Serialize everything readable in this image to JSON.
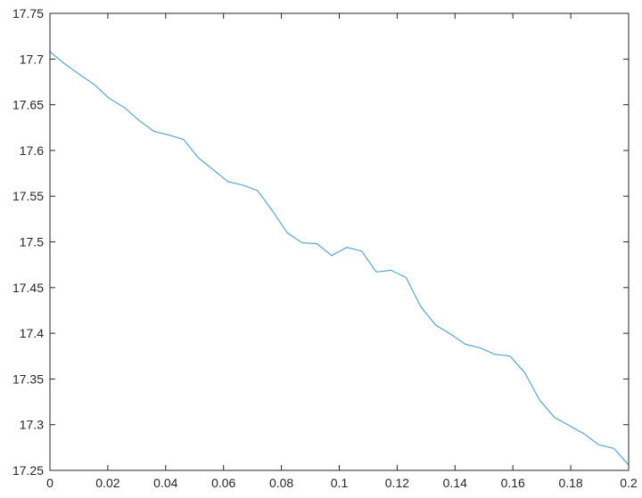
{
  "chart_data": {
    "type": "line",
    "title": "",
    "xlabel": "",
    "ylabel": "",
    "xlim": [
      0,
      0.2
    ],
    "ylim": [
      17.25,
      17.75
    ],
    "grid": false,
    "legend": "none",
    "xticks": [
      "0",
      "0.02",
      "0.04",
      "0.06",
      "0.08",
      "0.1",
      "0.12",
      "0.14",
      "0.16",
      "0.18",
      "0.2"
    ],
    "yticks": [
      "17.25",
      "17.3",
      "17.35",
      "17.4",
      "17.45",
      "17.5",
      "17.55",
      "17.6",
      "17.65",
      "17.7",
      "17.75"
    ],
    "line_color": "#4a9fd4",
    "axis_color": "#262626",
    "series": [
      {
        "x": [
          0,
          0.005,
          0.0103,
          0.0154,
          0.0205,
          0.0257,
          0.0308,
          0.0359,
          0.041,
          0.0462,
          0.0513,
          0.0564,
          0.0615,
          0.0667,
          0.0718,
          0.0769,
          0.082,
          0.0872,
          0.0923,
          0.0974,
          0.1026,
          0.1077,
          0.1128,
          0.1179,
          0.1231,
          0.1282,
          0.1333,
          0.1385,
          0.1436,
          0.1487,
          0.1538,
          0.159,
          0.1641,
          0.1692,
          0.1744,
          0.1795,
          0.1846,
          0.1897,
          0.1949,
          0.2
        ],
        "y": [
          17.708,
          17.695,
          17.683,
          17.672,
          17.657,
          17.647,
          17.633,
          17.621,
          17.617,
          17.612,
          17.592,
          17.579,
          17.566,
          17.562,
          17.556,
          17.534,
          17.51,
          17.499,
          17.498,
          17.485,
          17.494,
          17.49,
          17.467,
          17.469,
          17.461,
          17.429,
          17.409,
          17.399,
          17.388,
          17.384,
          17.377,
          17.375,
          17.357,
          17.327,
          17.308,
          17.299,
          17.29,
          17.278,
          17.274,
          17.256
        ]
      }
    ]
  }
}
